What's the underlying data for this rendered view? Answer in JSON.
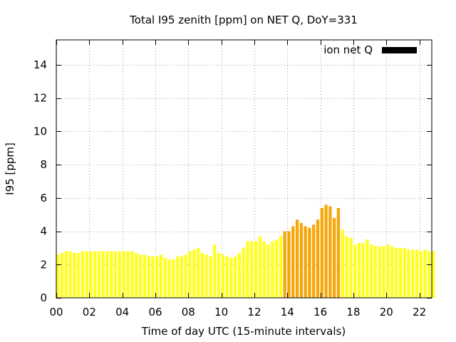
{
  "chart_data": {
    "type": "bar",
    "title": "Total I95 zenith [ppm] on NET Q, DoY=331",
    "xlabel": "Time of day UTC (15-minute intervals)",
    "ylabel": "I95 [ppm]",
    "xlim": [
      0,
      22.75
    ],
    "ylim": [
      0,
      15.5
    ],
    "x_ticks": [
      "00",
      "02",
      "04",
      "06",
      "08",
      "10",
      "12",
      "14",
      "16",
      "18",
      "20",
      "22"
    ],
    "x_tick_values": [
      0,
      2,
      4,
      6,
      8,
      10,
      12,
      14,
      16,
      18,
      20,
      22
    ],
    "y_ticks": [
      0,
      2,
      4,
      6,
      8,
      10,
      12,
      14
    ],
    "grid": true,
    "legend": {
      "label": "ion net Q",
      "color": "#000000",
      "placement": "top-right"
    },
    "colors": {
      "normal": "#ffff22",
      "elevated": "#f5a70a"
    },
    "interval_hours": 0.25,
    "bar_width_fraction": 0.75,
    "values": [
      2.6,
      2.7,
      2.8,
      2.8,
      2.7,
      2.7,
      2.8,
      2.8,
      2.8,
      2.8,
      2.8,
      2.8,
      2.8,
      2.8,
      2.8,
      2.8,
      2.8,
      2.8,
      2.8,
      2.7,
      2.6,
      2.6,
      2.5,
      2.5,
      2.5,
      2.6,
      2.4,
      2.3,
      2.3,
      2.5,
      2.5,
      2.6,
      2.8,
      2.9,
      3.0,
      2.7,
      2.6,
      2.5,
      3.2,
      2.7,
      2.6,
      2.5,
      2.4,
      2.5,
      2.7,
      3.0,
      3.4,
      3.4,
      3.4,
      3.7,
      3.4,
      3.2,
      3.4,
      3.5,
      3.7,
      4.0,
      4.0,
      4.3,
      4.7,
      4.5,
      4.3,
      4.2,
      4.4,
      4.7,
      5.4,
      5.6,
      5.5,
      4.8,
      5.4,
      4.1,
      3.7,
      3.6,
      3.2,
      3.3,
      3.3,
      3.5,
      3.2,
      3.1,
      3.1,
      3.1,
      3.2,
      3.1,
      3.0,
      3.0,
      3.0,
      2.9,
      2.9,
      2.9,
      2.8,
      2.9,
      2.8,
      2.8
    ],
    "elevated": [
      false,
      false,
      false,
      false,
      false,
      false,
      false,
      false,
      false,
      false,
      false,
      false,
      false,
      false,
      false,
      false,
      false,
      false,
      false,
      false,
      false,
      false,
      false,
      false,
      false,
      false,
      false,
      false,
      false,
      false,
      false,
      false,
      false,
      false,
      false,
      false,
      false,
      false,
      false,
      false,
      false,
      false,
      false,
      false,
      false,
      false,
      false,
      false,
      false,
      false,
      false,
      false,
      false,
      false,
      false,
      true,
      true,
      true,
      true,
      true,
      true,
      true,
      true,
      true,
      true,
      true,
      true,
      true,
      true,
      false,
      false,
      false,
      false,
      false,
      false,
      false,
      false,
      false,
      false,
      false,
      false,
      false,
      false,
      false,
      false,
      false,
      false,
      false,
      false,
      false,
      false,
      false
    ]
  }
}
